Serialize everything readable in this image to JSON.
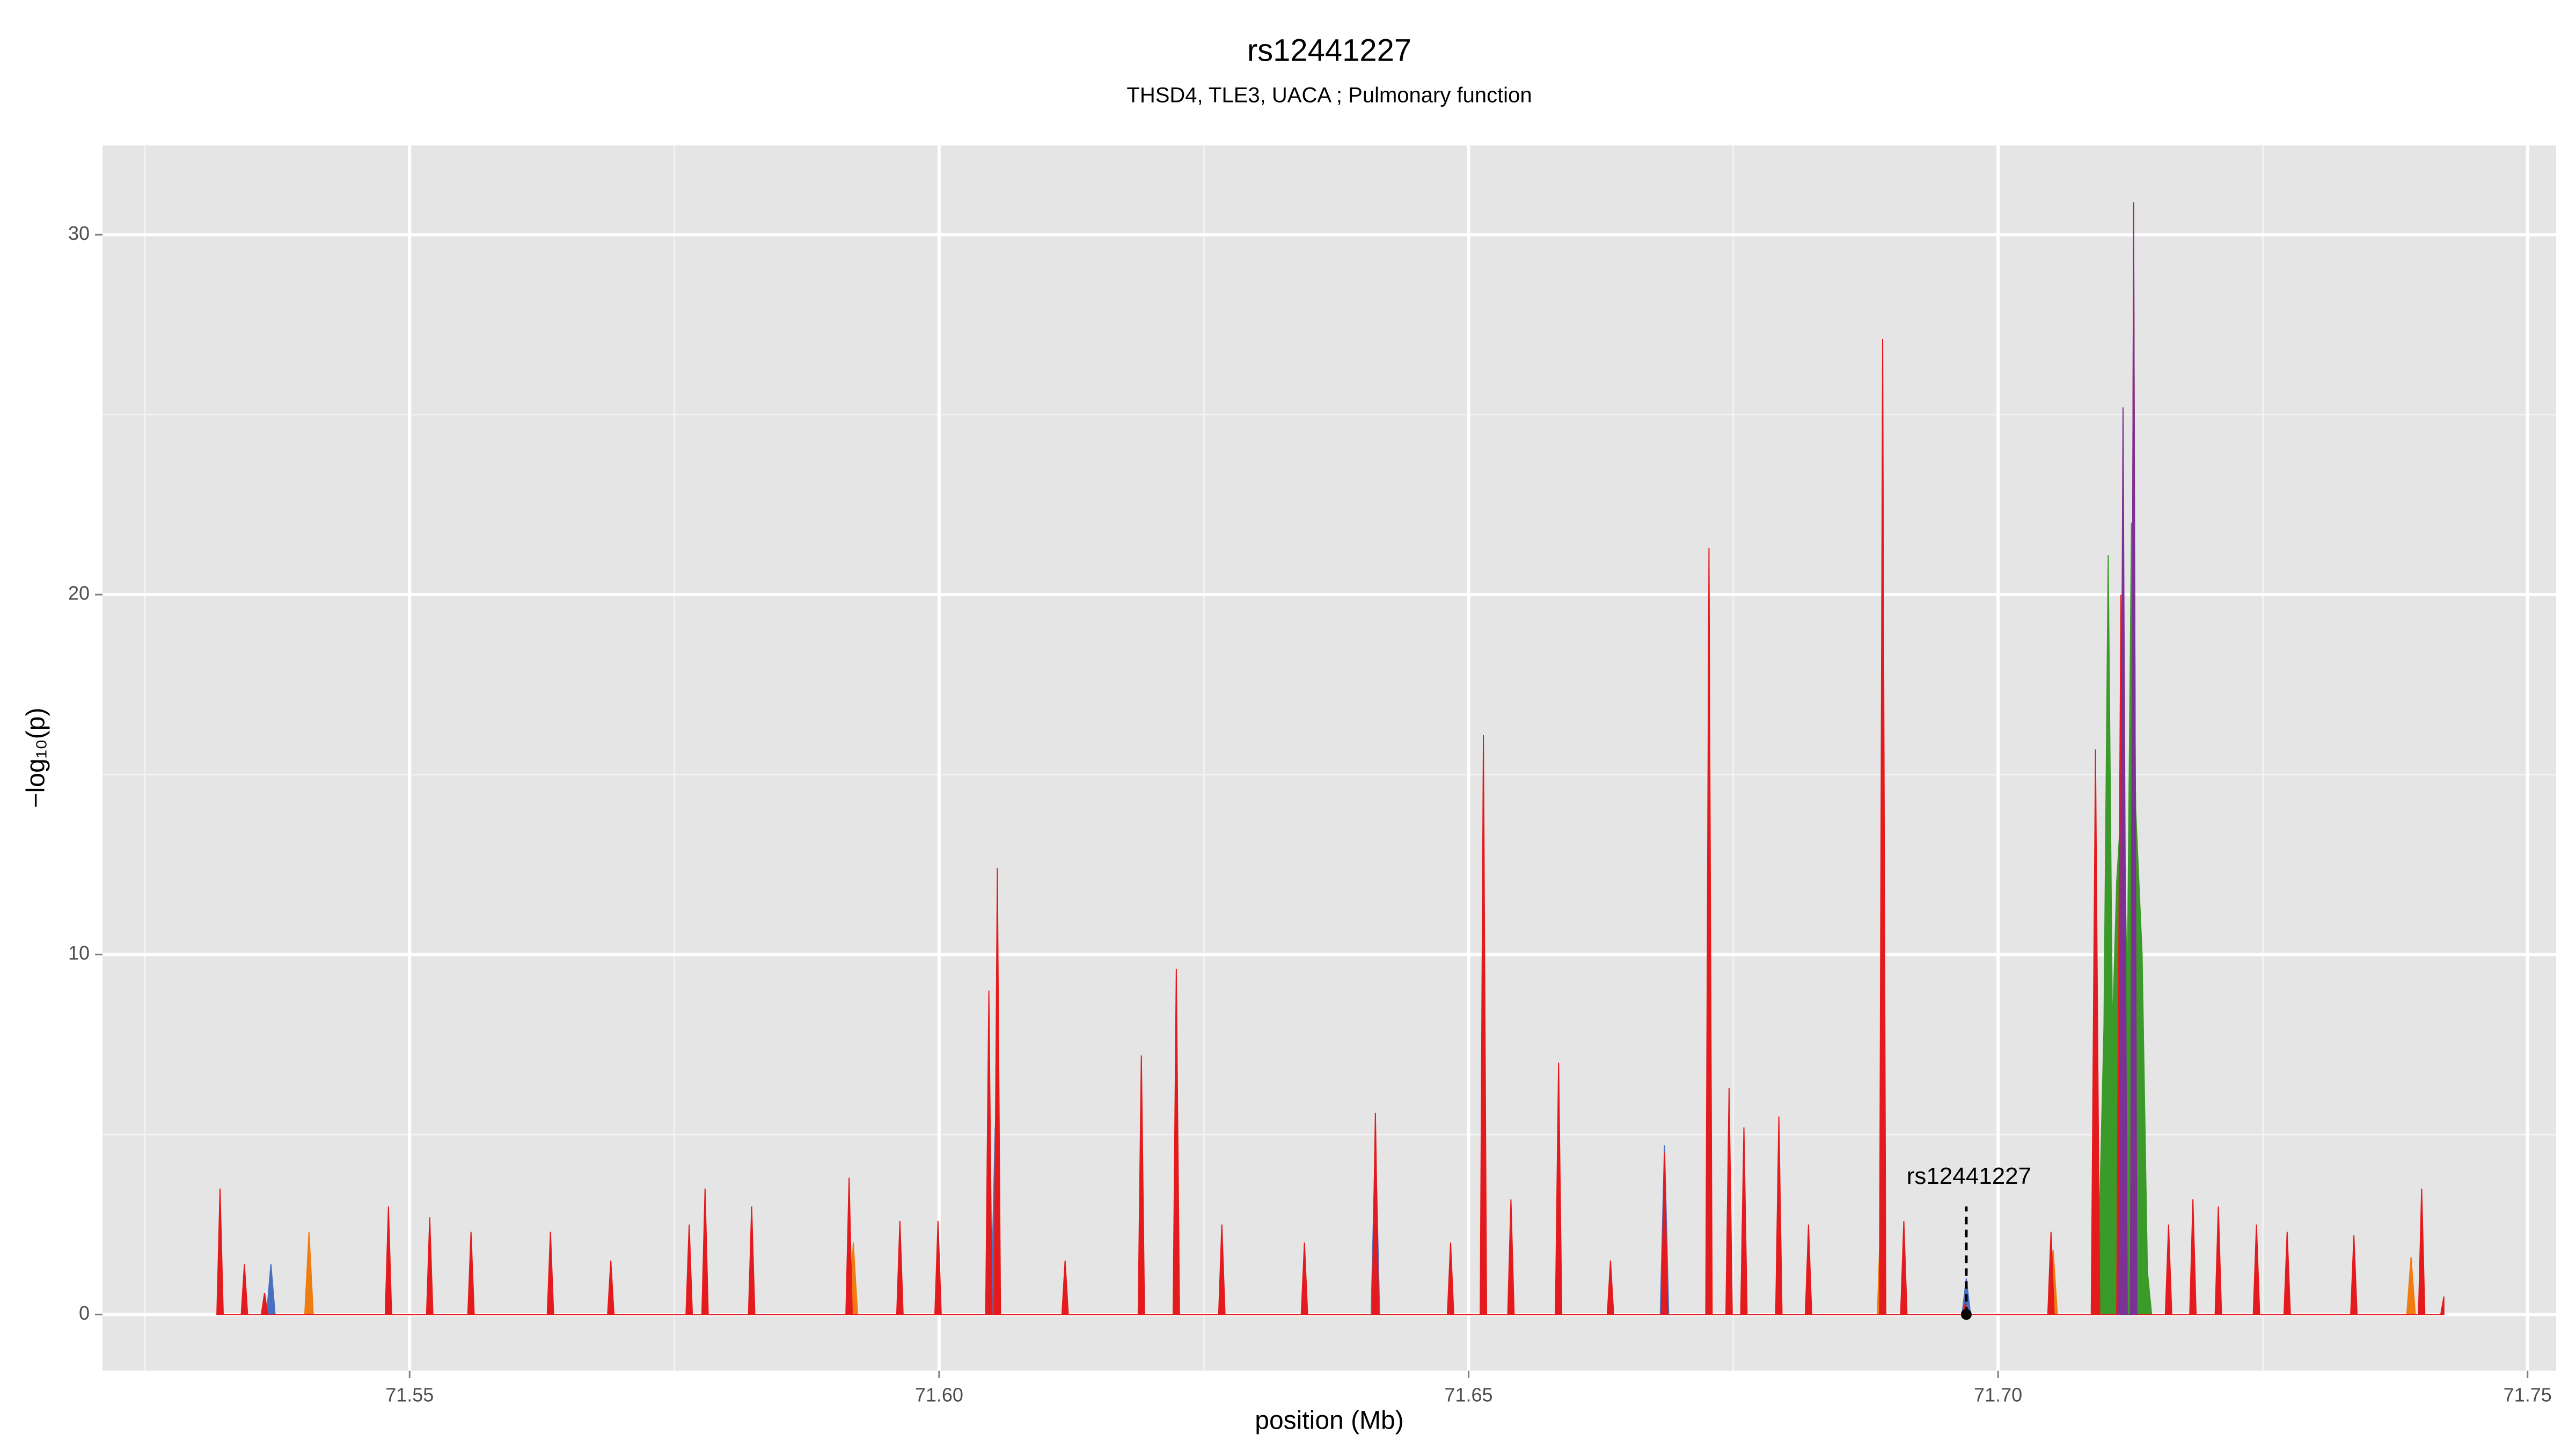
{
  "chart_data": {
    "type": "area",
    "title": "rs12441227",
    "subtitle": "THSD4, TLE3, UACA ; Pulmonary function",
    "x_label": "position (Mb)",
    "y_label": "−log₁₀(p)",
    "xlim": [
      71.521,
      71.7527
    ],
    "ylim": [
      -1.56,
      32.48
    ],
    "xticks": [
      71.55,
      {
        "value": 71.6,
        "label": "71.60"
      },
      71.65,
      {
        "value": 71.7,
        "label": "71.70"
      },
      71.75
    ],
    "yticks": [
      0,
      10,
      20,
      30
    ],
    "x_minor_ticks": [
      71.525,
      71.575,
      71.625,
      71.675,
      71.725
    ],
    "y_minor_ticks": [
      5,
      15,
      25
    ],
    "grid": true,
    "series": [
      {
        "color": "#3a9a2a",
        "x": [
          71.709,
          71.7096,
          71.71,
          71.7104,
          71.7108,
          71.7112,
          71.7118,
          71.7122,
          71.7126,
          71.713,
          71.7136,
          71.7141,
          71.7145
        ],
        "values": [
          0,
          3,
          8,
          21.1,
          7.8,
          12,
          15,
          9,
          22,
          14,
          10,
          1.2,
          0
        ]
      },
      {
        "color": "#4a6fc0",
        "x": [
          71.5365,
          71.5369,
          71.5373,
          71.6049,
          71.6053,
          71.6057,
          71.6681,
          71.6685,
          71.6689,
          71.6408,
          71.6412,
          71.6416,
          71.6966,
          71.697,
          71.6974
        ],
        "values": [
          0,
          1.4,
          0,
          0,
          5.2,
          0,
          0,
          4.7,
          0,
          0,
          5.0,
          0,
          0,
          1.0,
          0
        ]
      },
      {
        "color": "#f07c10",
        "x": [
          71.5401,
          71.5405,
          71.5409,
          71.5915,
          71.5919,
          71.5923,
          71.6886,
          71.689,
          71.6894,
          71.7048,
          71.7052,
          71.7056,
          71.7386,
          71.739,
          71.7394
        ],
        "values": [
          0,
          2.3,
          0,
          0,
          2.0,
          0,
          0,
          3.5,
          0,
          0,
          1.8,
          0,
          0,
          1.6,
          0
        ]
      },
      {
        "color": "#e41a1c",
        "x": [
          71.5318,
          71.5321,
          71.5324,
          71.5341,
          71.5344,
          71.5347,
          71.536,
          71.5363,
          71.5366,
          71.5477,
          71.548,
          71.5483,
          71.5516,
          71.5519,
          71.5522,
          71.5555,
          71.5558,
          71.5561,
          71.563,
          71.5633,
          71.5636,
          71.5687,
          71.569,
          71.5693,
          71.5761,
          71.5764,
          71.5767,
          71.5776,
          71.5779,
          71.5782,
          71.582,
          71.5823,
          71.5826,
          71.5912,
          71.5915,
          71.5918,
          71.596,
          71.5963,
          71.5966,
          71.5996,
          71.5999,
          71.6002,
          71.6044,
          71.6047,
          71.605,
          71.6052,
          71.6055,
          71.6058,
          71.6116,
          71.6119,
          71.6122,
          71.6188,
          71.6191,
          71.6194,
          71.6221,
          71.6224,
          71.6227,
          71.6264,
          71.6267,
          71.627,
          71.6342,
          71.6345,
          71.6348,
          71.6409,
          71.6412,
          71.6415,
          71.648,
          71.6483,
          71.6486,
          71.6511,
          71.6514,
          71.6517,
          71.6537,
          71.654,
          71.6543,
          71.6582,
          71.6585,
          71.6588,
          71.6631,
          71.6634,
          71.6637,
          71.6682,
          71.6685,
          71.6688,
          71.6724,
          71.6727,
          71.673,
          71.6743,
          71.6746,
          71.6749,
          71.6757,
          71.676,
          71.6763,
          71.679,
          71.6793,
          71.6796,
          71.6818,
          71.6821,
          71.6824,
          71.6888,
          71.6891,
          71.6894,
          71.6908,
          71.6911,
          71.6914,
          71.6966,
          71.6969,
          71.6972,
          71.7047,
          71.705,
          71.7053,
          71.7088,
          71.7092,
          71.7096,
          71.7112,
          71.7116,
          71.712,
          71.7125,
          71.7128,
          71.7131,
          71.7158,
          71.7161,
          71.7164,
          71.7181,
          71.7184,
          71.7187,
          71.7205,
          71.7208,
          71.7211,
          71.7241,
          71.7244,
          71.7247,
          71.727,
          71.7273,
          71.7276,
          71.7333,
          71.7336,
          71.7339,
          71.7397,
          71.74,
          71.7403,
          71.7418,
          71.7421
        ],
        "values": [
          0,
          3.5,
          0,
          0,
          1.4,
          0,
          0,
          0.6,
          0,
          0,
          3.0,
          0,
          0,
          2.7,
          0,
          0,
          2.3,
          0,
          0,
          2.3,
          0,
          0,
          1.5,
          0,
          0,
          2.5,
          0,
          0,
          3.5,
          0,
          0,
          3.0,
          0,
          0,
          3.8,
          0,
          0,
          2.6,
          0,
          0,
          2.6,
          0,
          0,
          9.0,
          0,
          0,
          12.4,
          0,
          0,
          1.5,
          0,
          0,
          7.2,
          0,
          0,
          9.6,
          0,
          0,
          2.5,
          0,
          0,
          2.0,
          0,
          0,
          5.6,
          0,
          0,
          2.0,
          0,
          0,
          16.1,
          0,
          0,
          3.2,
          0,
          0,
          7.0,
          0,
          0,
          1.5,
          0,
          0,
          4.5,
          0,
          0,
          21.3,
          0,
          0,
          6.3,
          0,
          0,
          5.2,
          0,
          0,
          5.5,
          0,
          0,
          2.5,
          0,
          0,
          27.1,
          0,
          0,
          2.6,
          0,
          0,
          0.3,
          0,
          0,
          2.3,
          0,
          0,
          15.7,
          0,
          0,
          20,
          0,
          0,
          30.8,
          0,
          0,
          2.5,
          0,
          0,
          3.2,
          0,
          0,
          3.0,
          0,
          0,
          2.5,
          0,
          0,
          2.3,
          0,
          0,
          2.2,
          0,
          0,
          3.5,
          0,
          0,
          0.5
        ]
      },
      {
        "color": "#7b3294",
        "x": [
          71.7114,
          71.7118,
          71.7122,
          71.7125,
          71.7128,
          71.7131
        ],
        "values": [
          0,
          25.2,
          0,
          0,
          30.9,
          0
        ]
      }
    ],
    "annotation": {
      "text": "rs12441227",
      "x": 71.697,
      "y": 0
    }
  }
}
